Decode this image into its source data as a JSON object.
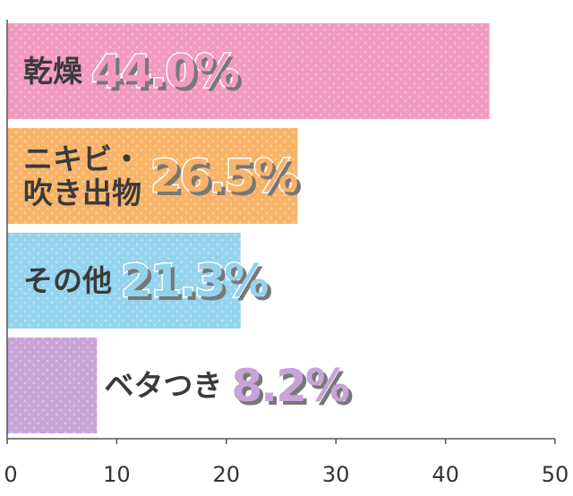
{
  "chart_data": {
    "type": "hbar",
    "categories": [
      "乾燥",
      "ニキビ・吹き出物",
      "その他",
      "ベタつき"
    ],
    "values": [
      44.0,
      26.5,
      21.3,
      8.2
    ],
    "value_labels": [
      "44.0%",
      "26.5%",
      "21.3%",
      "8.2%"
    ],
    "colors": [
      "#f29ac0",
      "#f7b469",
      "#93d3ee",
      "#c7a3d8"
    ],
    "xlim": [
      0,
      50
    ],
    "xticks": [
      0,
      10,
      20,
      30,
      40,
      50
    ]
  }
}
